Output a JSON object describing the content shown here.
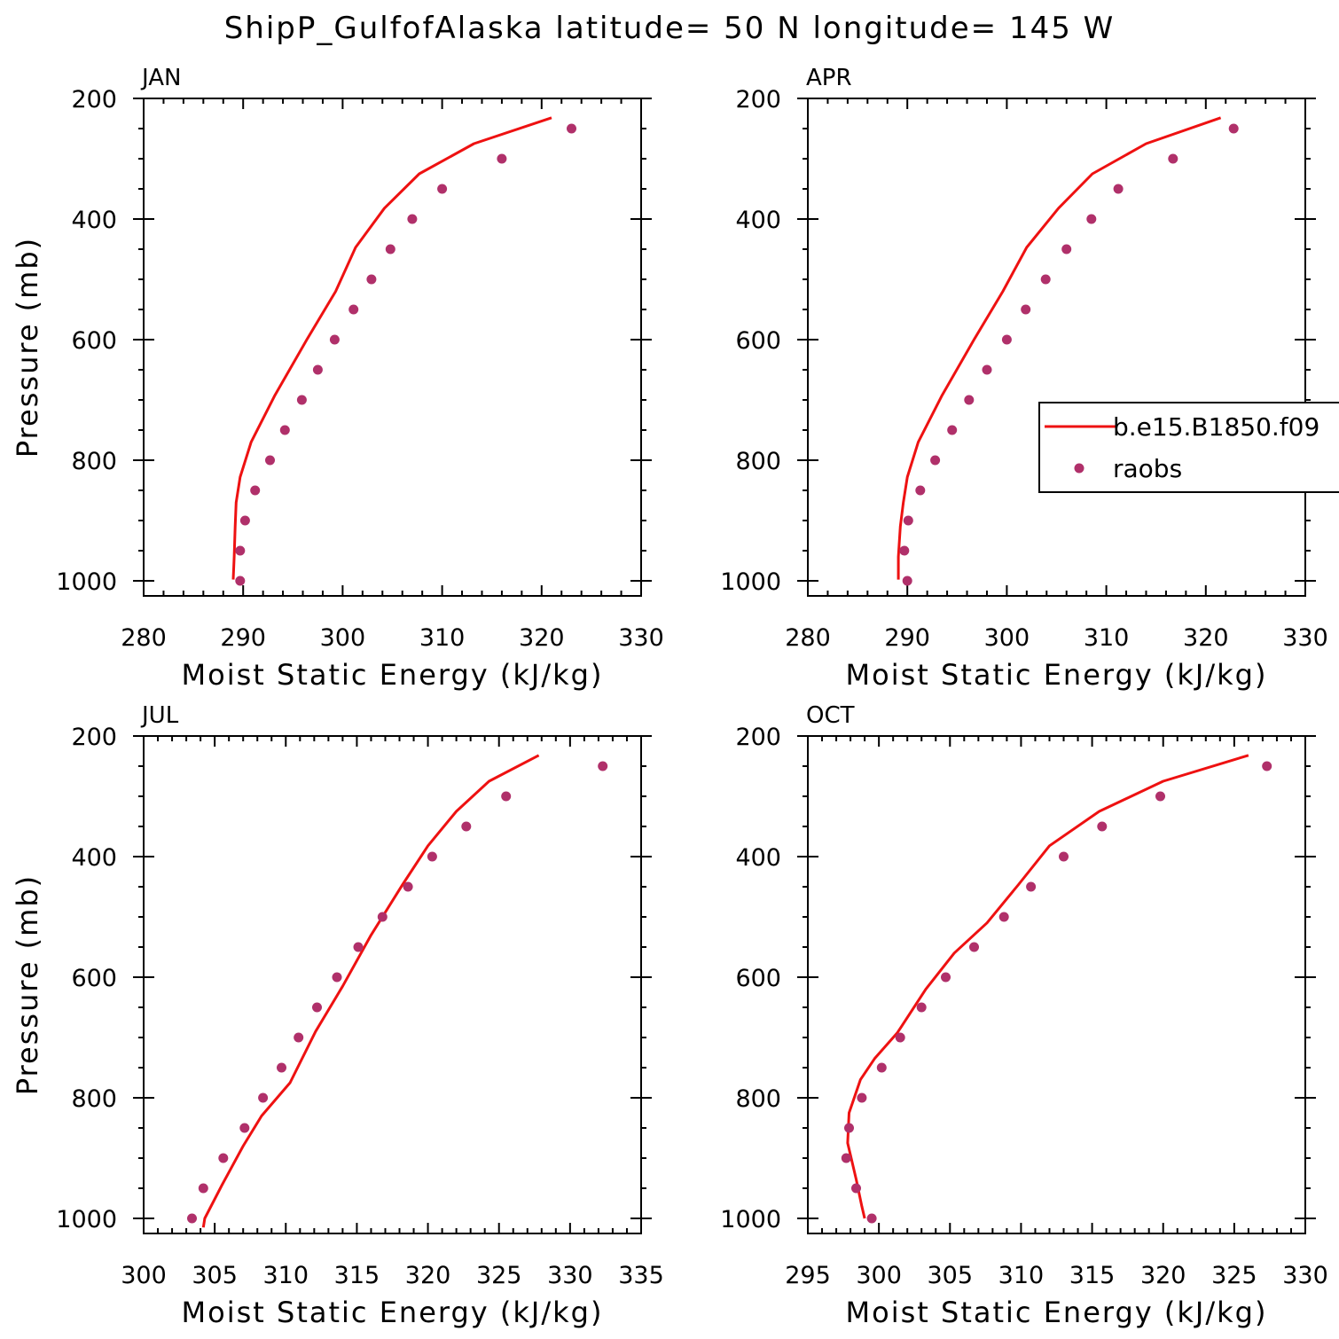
{
  "title": "ShipP_GulfofAlaska  latitude= 50 N longitude= 145 W",
  "colors": {
    "model_line": "#ee1111",
    "obs_marker": "#b0306a",
    "axis": "#000000"
  },
  "legend": {
    "entries": [
      {
        "label": "b.e15.B1850.f09",
        "style": "line"
      },
      {
        "label": "raobs",
        "style": "marker"
      }
    ]
  },
  "chart_data": [
    {
      "type": "line",
      "panel_label": "JAN",
      "xlabel": "Moist Static Energy (kJ/kg)",
      "ylabel": "Pressure (mb)",
      "xlim": [
        280,
        330
      ],
      "ylim": [
        200,
        1025
      ],
      "y_inverted": true,
      "xticks": [
        280,
        290,
        300,
        310,
        320,
        330
      ],
      "yticks": [
        200,
        400,
        600,
        800,
        1000
      ],
      "series": [
        {
          "name": "b.e15.B1850.f09",
          "style": "line",
          "x": [
            321.0,
            313.2,
            307.7,
            304.2,
            301.3,
            299.3,
            296.4,
            293.2,
            290.8,
            289.7,
            289.3,
            289.2,
            289.1,
            289.0
          ],
          "y": [
            232,
            275,
            325,
            382,
            447,
            520,
            600,
            692,
            770,
            828,
            870,
            910,
            960,
            998
          ]
        },
        {
          "name": "raobs",
          "style": "marker",
          "x": [
            323.0,
            316.0,
            310.0,
            307.0,
            304.8,
            302.9,
            301.1,
            299.2,
            297.5,
            295.9,
            294.2,
            292.7,
            291.2,
            290.2,
            289.7,
            289.7
          ],
          "y": [
            250,
            300,
            350,
            400,
            450,
            500,
            550,
            600,
            650,
            700,
            750,
            800,
            850,
            900,
            950,
            1000
          ]
        }
      ]
    },
    {
      "type": "line",
      "panel_label": "APR",
      "xlabel": "Moist Static Energy (kJ/kg)",
      "ylabel": "",
      "xlim": [
        280,
        330
      ],
      "ylim": [
        200,
        1025
      ],
      "y_inverted": true,
      "xticks": [
        280,
        290,
        300,
        310,
        320,
        330
      ],
      "yticks": [
        200,
        400,
        600,
        800,
        1000
      ],
      "series": [
        {
          "name": "b.e15.B1850.f09",
          "style": "line",
          "x": [
            321.5,
            314.0,
            308.6,
            305.2,
            302.0,
            299.6,
            296.7,
            293.5,
            291.1,
            290.0,
            289.6,
            289.3,
            289.1,
            289.1
          ],
          "y": [
            232,
            275,
            325,
            382,
            447,
            520,
            600,
            692,
            770,
            828,
            870,
            910,
            960,
            998
          ]
        },
        {
          "name": "raobs",
          "style": "marker",
          "x": [
            322.8,
            316.7,
            311.2,
            308.5,
            306.0,
            303.9,
            301.9,
            300.0,
            298.0,
            296.2,
            294.5,
            292.8,
            291.3,
            290.1,
            289.7,
            290.0
          ],
          "y": [
            250,
            300,
            350,
            400,
            450,
            500,
            550,
            600,
            650,
            700,
            750,
            800,
            850,
            900,
            950,
            1000
          ]
        }
      ]
    },
    {
      "type": "line",
      "panel_label": "JUL",
      "xlabel": "Moist Static Energy (kJ/kg)",
      "ylabel": "Pressure (mb)",
      "xlim": [
        300,
        335
      ],
      "ylim": [
        200,
        1025
      ],
      "y_inverted": true,
      "xticks": [
        300,
        305,
        310,
        315,
        320,
        325,
        330,
        335
      ],
      "yticks": [
        200,
        400,
        600,
        800,
        1000
      ],
      "series": [
        {
          "name": "b.e15.B1850.f09",
          "style": "line",
          "x": [
            327.8,
            324.3,
            322.0,
            320.0,
            318.2,
            316.0,
            314.0,
            312.1,
            310.3,
            308.3,
            307.0,
            305.5,
            304.3,
            304.2
          ],
          "y": [
            232,
            275,
            325,
            382,
            447,
            530,
            615,
            690,
            775,
            830,
            880,
            945,
            1000,
            1015
          ]
        },
        {
          "name": "raobs",
          "style": "marker",
          "x": [
            332.3,
            325.5,
            322.7,
            320.3,
            318.6,
            316.8,
            315.1,
            313.6,
            312.2,
            310.9,
            309.7,
            308.4,
            307.1,
            305.6,
            304.2,
            303.4
          ],
          "y": [
            250,
            300,
            350,
            400,
            450,
            500,
            550,
            600,
            650,
            700,
            750,
            800,
            850,
            900,
            950,
            1000
          ]
        }
      ]
    },
    {
      "type": "line",
      "panel_label": "OCT",
      "xlabel": "Moist Static Energy (kJ/kg)",
      "ylabel": "",
      "xlim": [
        295,
        330
      ],
      "ylim": [
        200,
        1025
      ],
      "y_inverted": true,
      "xticks": [
        295,
        300,
        305,
        310,
        315,
        320,
        325,
        330
      ],
      "yticks": [
        200,
        400,
        600,
        800,
        1000
      ],
      "series": [
        {
          "name": "b.e15.B1850.f09",
          "style": "line",
          "x": [
            326.0,
            320.0,
            315.5,
            312.0,
            309.8,
            307.6,
            305.3,
            303.3,
            301.3,
            299.7,
            298.7,
            297.9,
            297.8,
            298.4,
            298.8,
            299.0
          ],
          "y": [
            232,
            275,
            325,
            382,
            447,
            510,
            560,
            620,
            692,
            735,
            770,
            825,
            875,
            935,
            980,
            1000
          ]
        },
        {
          "name": "raobs",
          "style": "marker",
          "x": [
            327.3,
            319.8,
            315.7,
            313.0,
            310.7,
            308.8,
            306.7,
            304.7,
            303.0,
            301.5,
            300.2,
            298.8,
            297.9,
            297.7,
            298.4,
            299.5
          ],
          "y": [
            250,
            300,
            350,
            400,
            450,
            500,
            550,
            600,
            650,
            700,
            750,
            800,
            850,
            900,
            950,
            1000
          ]
        }
      ]
    }
  ]
}
